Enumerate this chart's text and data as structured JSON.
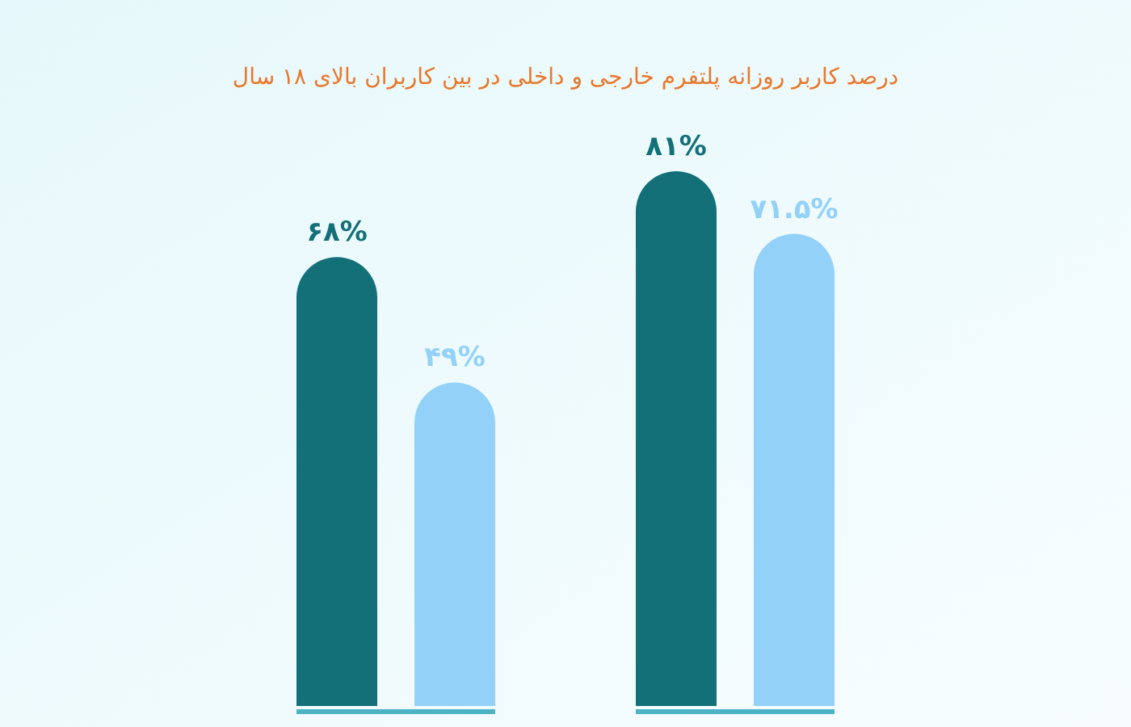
{
  "chart_data": {
    "type": "bar",
    "subtitle": "درصد کاربر روزانه پلتفرم خارجی و داخلی در بین کاربران بالای ۱۸ سال",
    "categories": [
      null,
      null
    ],
    "series": [
      {
        "color": "#137078",
        "values": [
          68,
          81
        ],
        "value_labels": [
          "۶۸%",
          "۸۱%"
        ]
      },
      {
        "color": "#93d1f9",
        "values": [
          49,
          71.5
        ],
        "value_labels": [
          "۴۹%",
          "۷۱.۵%"
        ]
      }
    ]
  }
}
